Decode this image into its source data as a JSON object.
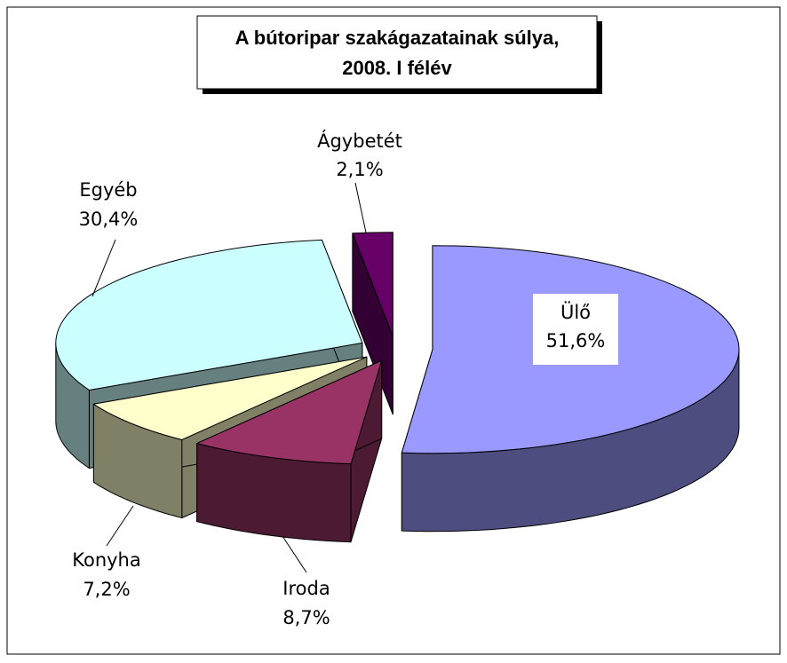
{
  "chart_data": {
    "type": "pie3d",
    "title": "A bútoripar szakágazatainak súlya,",
    "subtitle": "2008. I félév",
    "categories": [
      "Ülő",
      "Iroda",
      "Konyha",
      "Egyéb",
      "Ágybetét"
    ],
    "values": [
      51.6,
      8.7,
      7.2,
      30.4,
      2.1
    ],
    "value_labels": [
      "51,6%",
      "8,7%",
      "7,2%",
      "30,4%",
      "2,1%"
    ],
    "colors": [
      "#9999ff",
      "#993366",
      "#ffffcc",
      "#ccffff",
      "#660066"
    ],
    "side_colors": [
      "#4d4d80",
      "#4d1a33",
      "#808066",
      "#668080",
      "#330033"
    ]
  }
}
